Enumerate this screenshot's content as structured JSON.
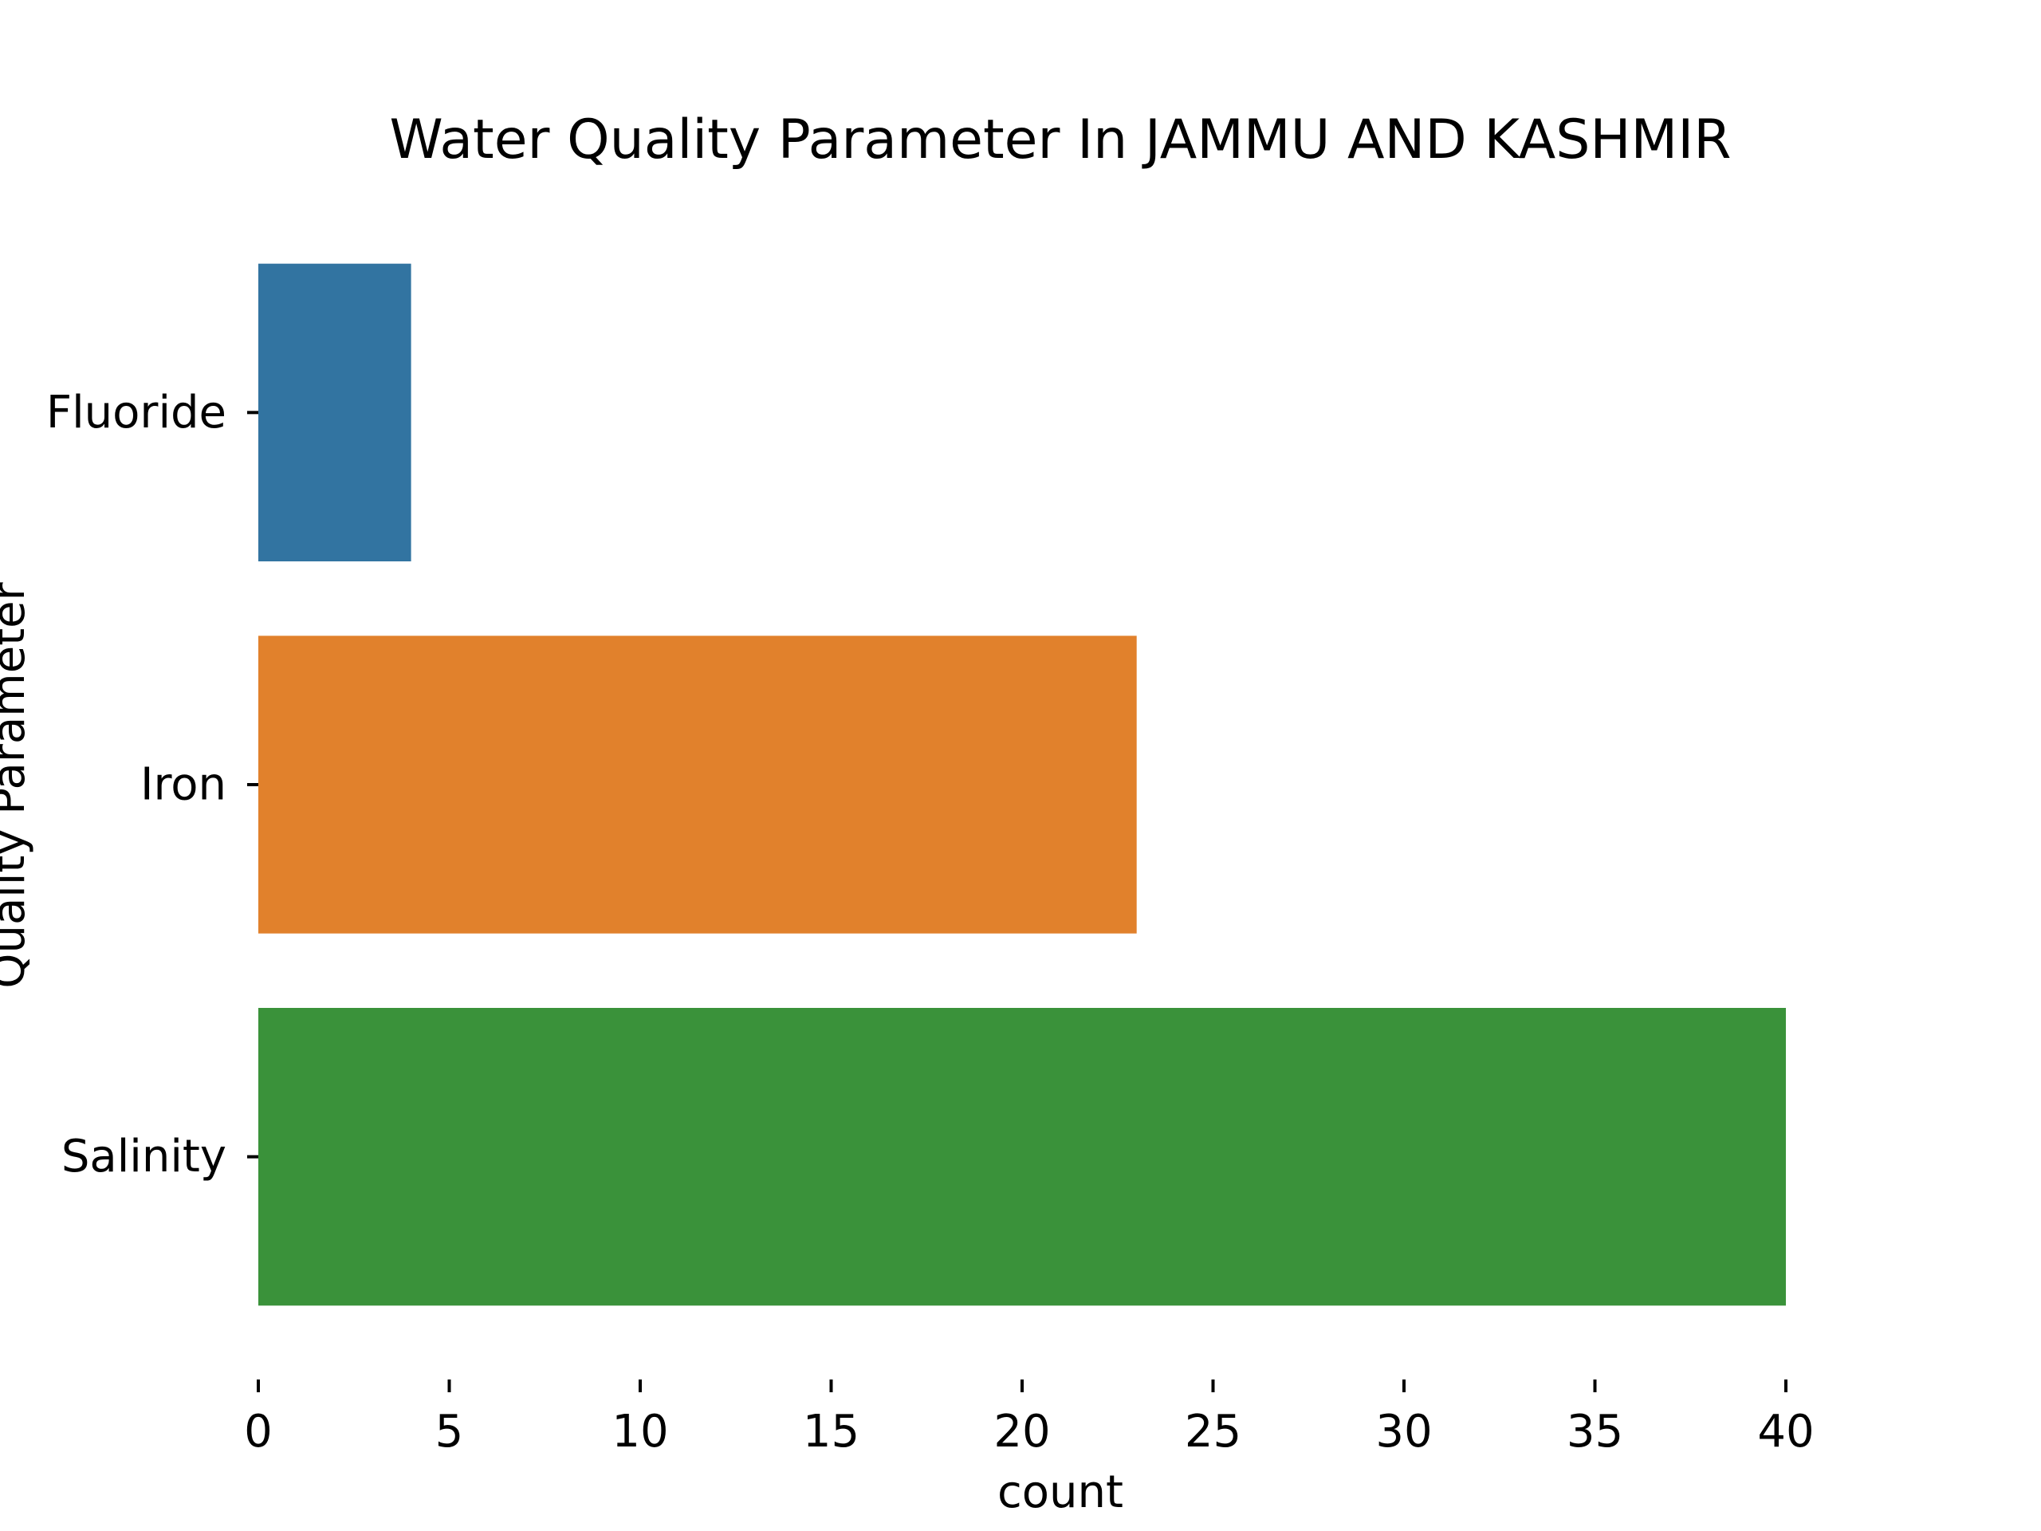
{
  "chart_data": {
    "type": "bar",
    "orientation": "horizontal",
    "title": "Water Quality Parameter In JAMMU AND KASHMIR",
    "xlabel": "count",
    "ylabel": "Quality Parameter",
    "categories": [
      "Fluoride",
      "Iron",
      "Salinity"
    ],
    "values": [
      4,
      23,
      40
    ],
    "colors": [
      "#3274a1",
      "#e1812c",
      "#3a923a"
    ],
    "xlim": [
      0,
      40
    ],
    "xticks": [
      0,
      5,
      10,
      15,
      20,
      25,
      30,
      35,
      40
    ],
    "grid": false,
    "legend": "none"
  }
}
